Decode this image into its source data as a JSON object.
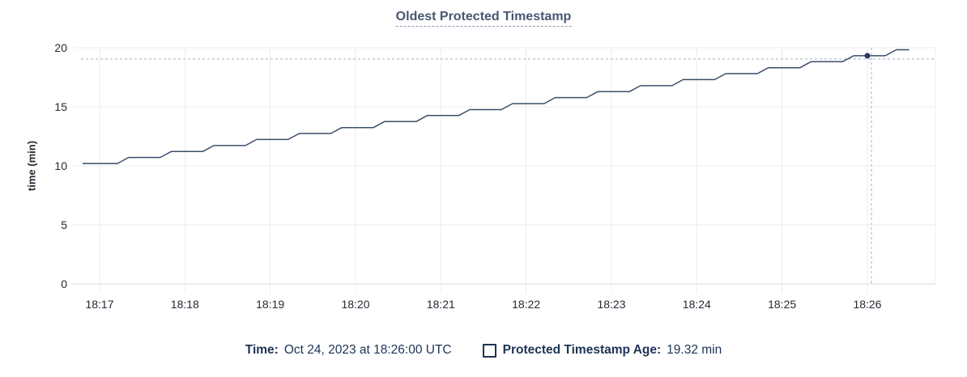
{
  "chart_data": {
    "type": "line",
    "title": "Oldest Protected Timestamp",
    "xlabel": "",
    "ylabel": "time (min)",
    "ylim": [
      0,
      20
    ],
    "y_ticks": [
      0,
      5,
      10,
      15,
      20
    ],
    "x_ticks": [
      "18:17",
      "18:18",
      "18:19",
      "18:20",
      "18:21",
      "18:22",
      "18:23",
      "18:24",
      "18:25",
      "18:26"
    ],
    "grid": true,
    "legend_position": "bottom",
    "series": [
      {
        "name": "Protected Timestamp Age",
        "unit": "min",
        "points": [
          [
            -0.2,
            10.2
          ],
          [
            0.21,
            10.2
          ],
          [
            0.34,
            10.71
          ],
          [
            0.71,
            10.71
          ],
          [
            0.84,
            11.21
          ],
          [
            1.21,
            11.21
          ],
          [
            1.34,
            11.72
          ],
          [
            1.71,
            11.72
          ],
          [
            1.84,
            12.23
          ],
          [
            2.21,
            12.23
          ],
          [
            2.34,
            12.74
          ],
          [
            2.71,
            12.74
          ],
          [
            2.84,
            13.24
          ],
          [
            3.21,
            13.24
          ],
          [
            3.34,
            13.75
          ],
          [
            3.71,
            13.75
          ],
          [
            3.84,
            14.26
          ],
          [
            4.21,
            14.26
          ],
          [
            4.34,
            14.76
          ],
          [
            4.71,
            14.76
          ],
          [
            4.84,
            15.27
          ],
          [
            5.21,
            15.27
          ],
          [
            5.34,
            15.78
          ],
          [
            5.71,
            15.78
          ],
          [
            5.84,
            16.28
          ],
          [
            6.21,
            16.28
          ],
          [
            6.34,
            16.79
          ],
          [
            6.71,
            16.79
          ],
          [
            6.84,
            17.3
          ],
          [
            7.21,
            17.3
          ],
          [
            7.34,
            17.81
          ],
          [
            7.71,
            17.81
          ],
          [
            7.84,
            18.31
          ],
          [
            8.21,
            18.31
          ],
          [
            8.34,
            18.82
          ],
          [
            8.71,
            18.82
          ],
          [
            8.84,
            19.32
          ],
          [
            9.21,
            19.32
          ],
          [
            9.34,
            19.83
          ],
          [
            9.49,
            19.83
          ]
        ]
      }
    ],
    "hover_point": {
      "x_tick": "18:26",
      "x_min_offset": 9.0,
      "value": 19.32
    }
  },
  "tooltip": {
    "time_label": "Time:",
    "time_value": "Oct 24, 2023 at 18:26:00 UTC",
    "series_label": "Protected Timestamp Age:",
    "series_value": "19.32 min"
  },
  "colors": {
    "line": "#3b4d69",
    "dot": "#28395a",
    "grid": "#ececec",
    "axis_line": "#d9d9d9",
    "crosshair": "#a0b4c7",
    "title": "#475872",
    "title_underline": "#8b9cb4",
    "tick_text": "#242a35",
    "legend_text": "#1e3356"
  }
}
